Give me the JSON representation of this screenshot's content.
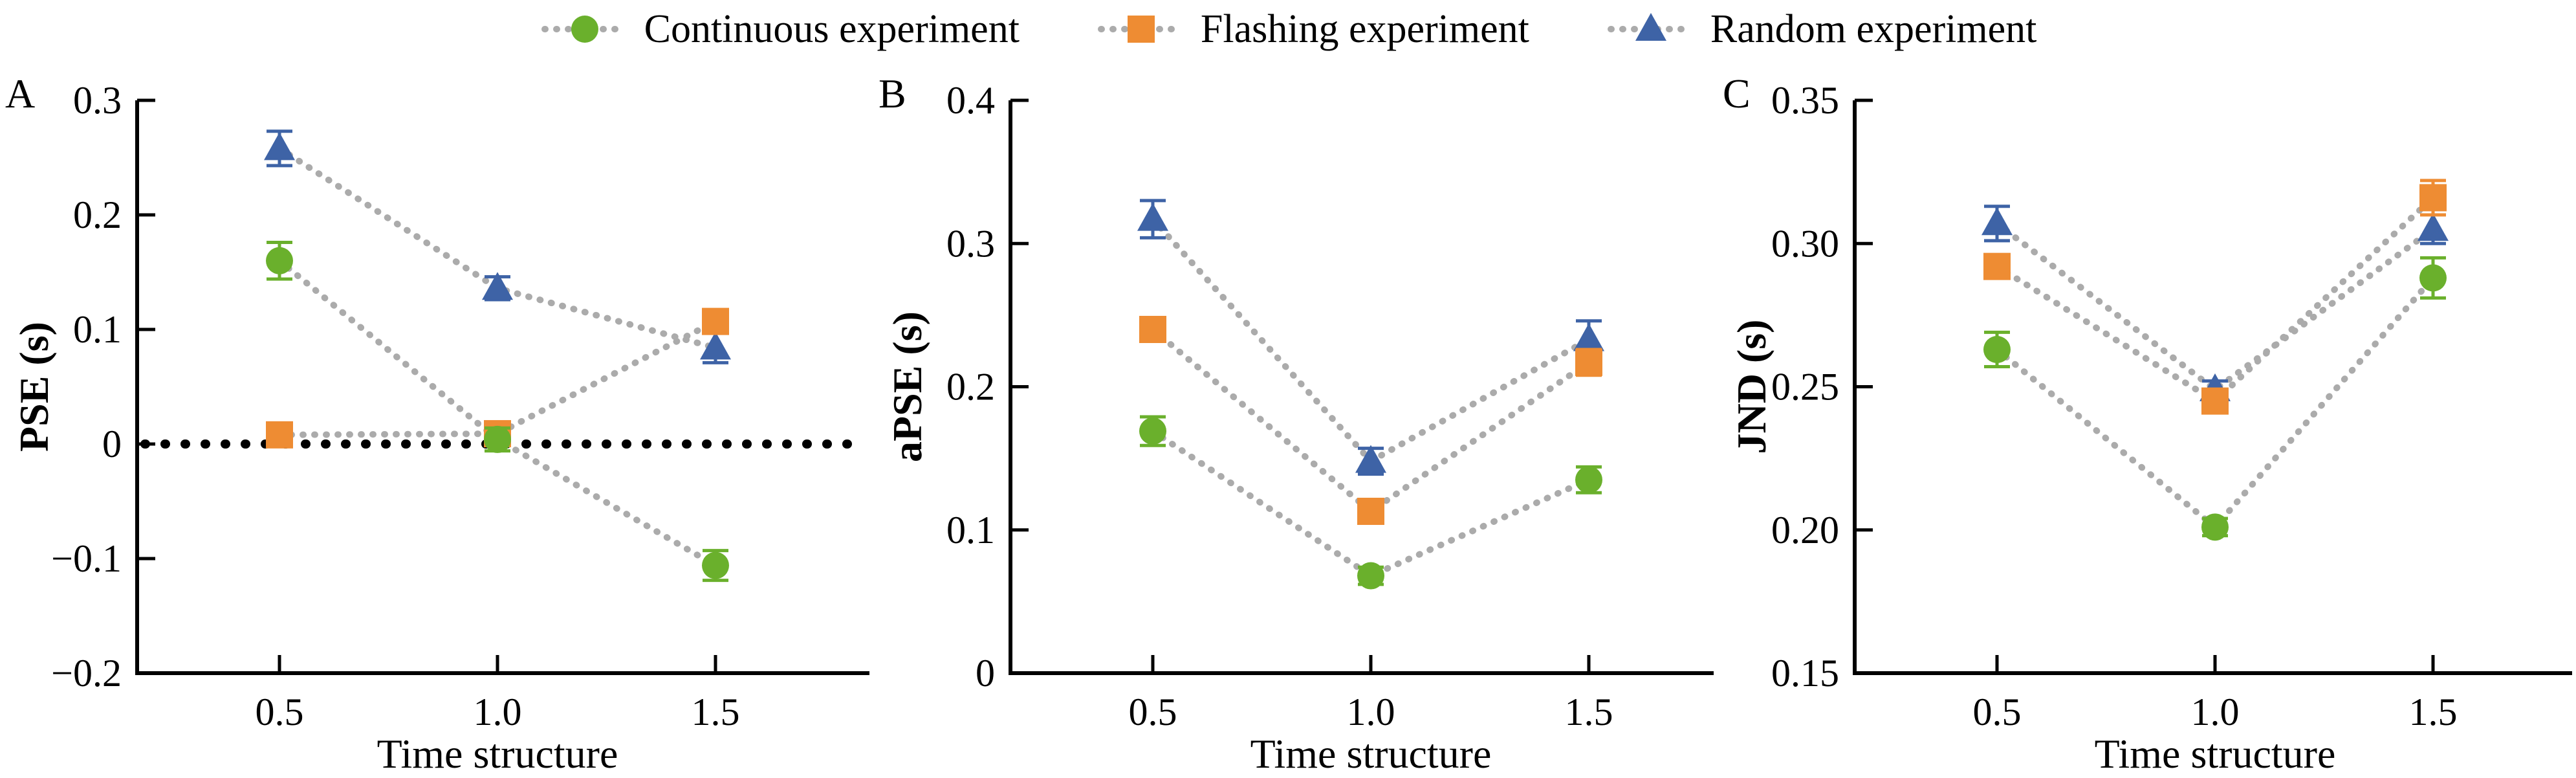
{
  "legend": {
    "items": [
      {
        "label": "Continuous experiment",
        "marker": "circle",
        "color": "#6AB02C"
      },
      {
        "label": "Flashing experiment",
        "marker": "square",
        "color": "#EE8C33"
      },
      {
        "label": "Random experiment",
        "marker": "triangle",
        "color": "#3E63A6"
      }
    ]
  },
  "styles": {
    "connector_color": "#ABABAB",
    "axis_color": "#000000",
    "reference_line_color": "#000000",
    "background": "#ffffff"
  },
  "chart_data": [
    {
      "type": "line",
      "panel_label": "A",
      "xlabel": "Time structure",
      "ylabel": "PSE (s)",
      "x": [
        0.5,
        1.0,
        1.5
      ],
      "xticklabels": [
        "0.5",
        "1.0",
        "1.5"
      ],
      "xlim": [
        0.17,
        1.85
      ],
      "ylim": [
        -0.2,
        0.3
      ],
      "yticks": [
        0.3,
        0.2,
        0.1,
        0,
        -0.1,
        -0.2
      ],
      "yticklabels": [
        "0.3",
        "0.2",
        "0.1",
        "0",
        "−0.1",
        "−0.2"
      ],
      "grid": false,
      "reference_line_y": 0,
      "series": [
        {
          "name": "Continuous experiment",
          "marker": "circle",
          "color": "#6AB02C",
          "values": [
            0.16,
            0.004,
            -0.106
          ],
          "errors": [
            0.016,
            0.01,
            0.013
          ]
        },
        {
          "name": "Flashing experiment",
          "marker": "square",
          "color": "#EE8C33",
          "values": [
            0.008,
            0.009,
            0.107
          ],
          "errors": [
            0.006,
            0.006,
            0.008
          ]
        },
        {
          "name": "Random experiment",
          "marker": "triangle",
          "color": "#3E63A6",
          "values": [
            0.258,
            0.136,
            0.084
          ],
          "errors": [
            0.015,
            0.01,
            0.013
          ]
        }
      ]
    },
    {
      "type": "line",
      "panel_label": "B",
      "xlabel": "Time structure",
      "ylabel": "aPSE (s)",
      "x": [
        0.5,
        1.0,
        1.5
      ],
      "xticklabels": [
        "0.5",
        "1.0",
        "1.5"
      ],
      "xlim": [
        0.17,
        1.85
      ],
      "ylim": [
        0,
        0.4
      ],
      "yticks": [
        0.4,
        0.3,
        0.2,
        0.1,
        0
      ],
      "yticklabels": [
        "0.4",
        "0.3",
        "0.2",
        "0.1",
        "0"
      ],
      "grid": false,
      "reference_line_y": null,
      "series": [
        {
          "name": "Continuous experiment",
          "marker": "circle",
          "color": "#6AB02C",
          "values": [
            0.169,
            0.068,
            0.135
          ],
          "errors": [
            0.01,
            0.006,
            0.009
          ]
        },
        {
          "name": "Flashing experiment",
          "marker": "square",
          "color": "#EE8C33",
          "values": [
            0.24,
            0.113,
            0.217
          ],
          "errors": [
            0.007,
            0.007,
            0.009
          ]
        },
        {
          "name": "Random experiment",
          "marker": "triangle",
          "color": "#3E63A6",
          "values": [
            0.317,
            0.148,
            0.233
          ],
          "errors": [
            0.013,
            0.009,
            0.013
          ]
        }
      ]
    },
    {
      "type": "line",
      "panel_label": "C",
      "xlabel": "Time structure",
      "ylabel": "JND (s)",
      "x": [
        0.5,
        1.0,
        1.5
      ],
      "xticklabels": [
        "0.5",
        "1.0",
        "1.5"
      ],
      "xlim": [
        0.17,
        1.85
      ],
      "ylim": [
        0.15,
        0.35
      ],
      "yticks": [
        0.35,
        0.3,
        0.25,
        0.2,
        0.15
      ],
      "yticklabels": [
        "0.35",
        "0.30",
        "0.25",
        "0.20",
        "0.15"
      ],
      "grid": false,
      "reference_line_y": null,
      "series": [
        {
          "name": "Continuous experiment",
          "marker": "circle",
          "color": "#6AB02C",
          "values": [
            0.263,
            0.201,
            0.288
          ],
          "errors": [
            0.006,
            0.003,
            0.007
          ]
        },
        {
          "name": "Flashing experiment",
          "marker": "square",
          "color": "#EE8C33",
          "values": [
            0.292,
            0.245,
            0.316
          ],
          "errors": [
            0.004,
            0.004,
            0.006
          ]
        },
        {
          "name": "Random experiment",
          "marker": "triangle",
          "color": "#3E63A6",
          "values": [
            0.307,
            0.249,
            0.305
          ],
          "errors": [
            0.006,
            0.003,
            0.005
          ]
        }
      ]
    }
  ]
}
